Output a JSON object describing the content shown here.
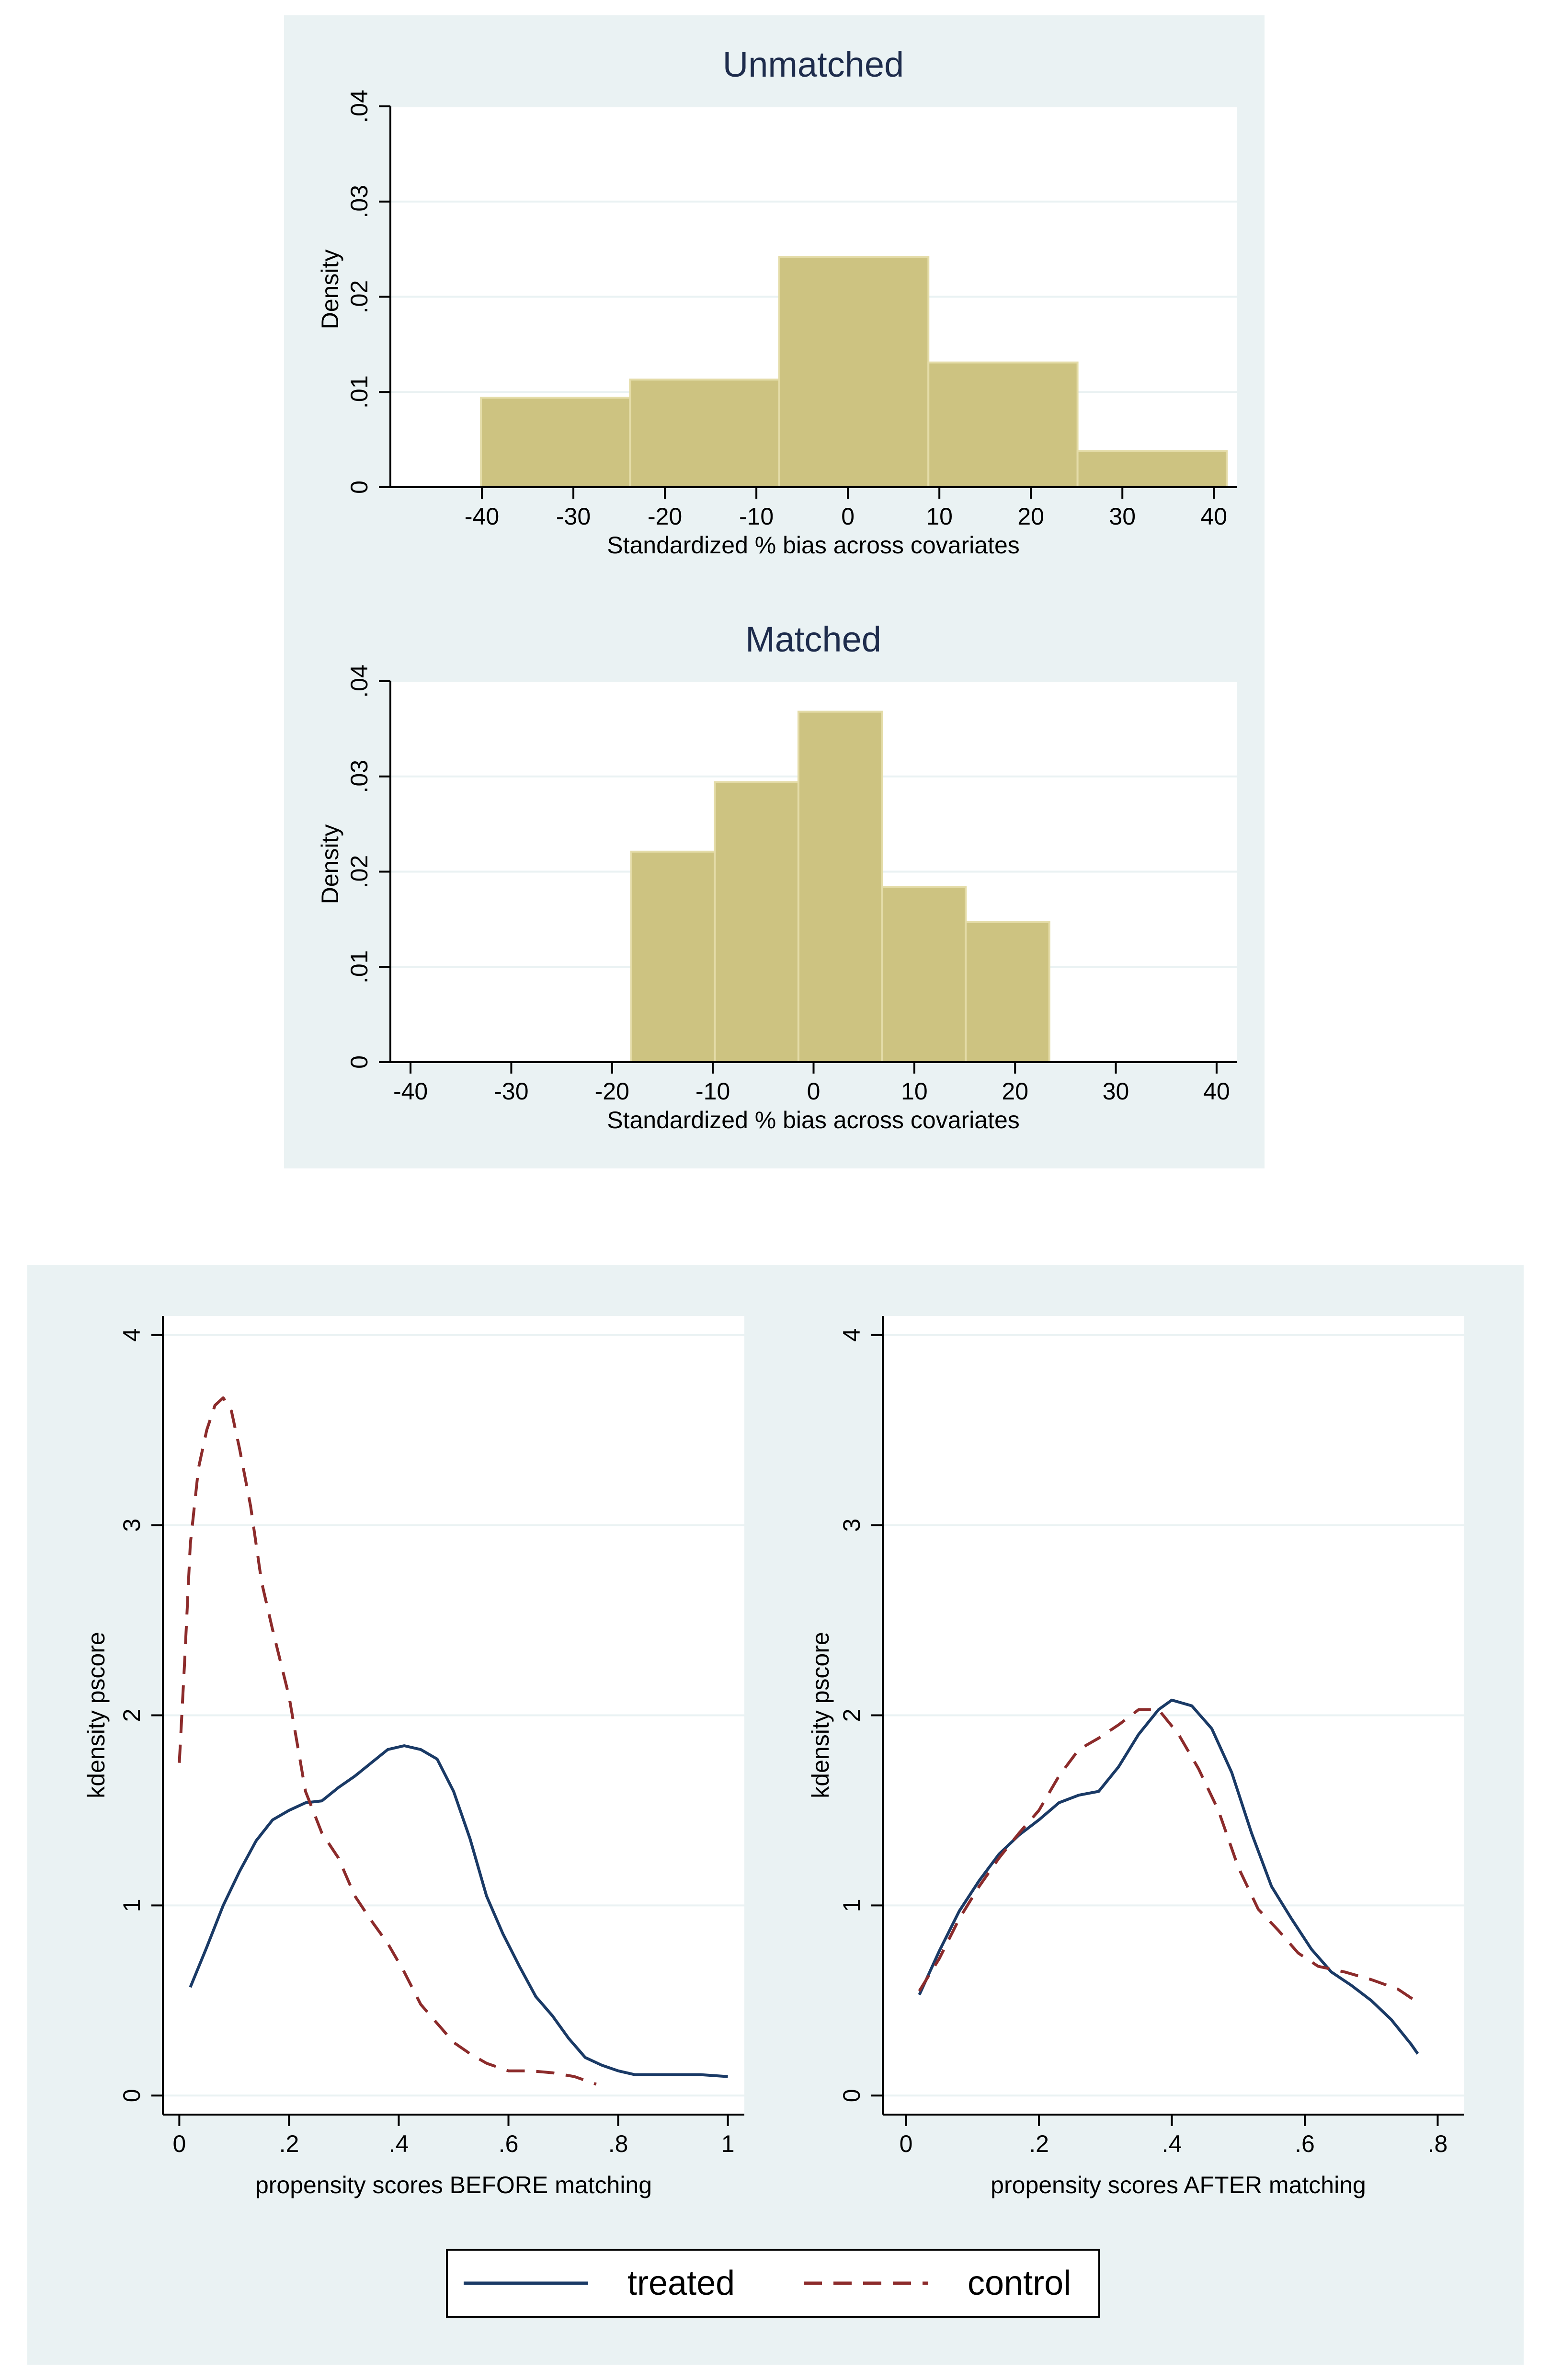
{
  "chart_data": [
    {
      "type": "bar",
      "title": "Unmatched",
      "xlabel": "Standardized % bias across covariates",
      "ylabel": "Density",
      "xlim": [
        -50,
        42.5
      ],
      "ylim": [
        0,
        0.04
      ],
      "xticks": [
        -40,
        -30,
        -20,
        -10,
        0,
        10,
        20,
        30,
        40
      ],
      "xtick_labels": [
        "-40",
        "-30",
        "-20",
        "-10",
        "0",
        "10",
        "20",
        "30",
        "40"
      ],
      "yticks": [
        0,
        0.01,
        0.02,
        0.03,
        0.04
      ],
      "ytick_labels": [
        "0",
        ".01",
        ".02",
        ".03",
        ".04"
      ],
      "bins": [
        {
          "x0": -40.1,
          "x1": -23.8,
          "value": 0.0094
        },
        {
          "x0": -23.8,
          "x1": -7.5,
          "value": 0.0113
        },
        {
          "x0": -7.5,
          "x1": 8.8,
          "value": 0.0242
        },
        {
          "x0": 8.8,
          "x1": 25.1,
          "value": 0.0131
        },
        {
          "x0": 25.1,
          "x1": 41.4,
          "value": 0.0038
        }
      ]
    },
    {
      "type": "bar",
      "title": "Matched",
      "xlabel": "Standardized % bias across covariates",
      "ylabel": "Density",
      "xlim": [
        -42,
        42
      ],
      "ylim": [
        0,
        0.04
      ],
      "xticks": [
        -40,
        -30,
        -20,
        -10,
        0,
        10,
        20,
        30,
        40
      ],
      "xtick_labels": [
        "-40",
        "-30",
        "-20",
        "-10",
        "0",
        "10",
        "20",
        "30",
        "40"
      ],
      "yticks": [
        0,
        0.01,
        0.02,
        0.03,
        0.04
      ],
      "ytick_labels": [
        "0",
        ".01",
        ".02",
        ".03",
        ".04"
      ],
      "bins": [
        {
          "x0": -18.1,
          "x1": -9.8,
          "value": 0.0221
        },
        {
          "x0": -9.8,
          "x1": -1.5,
          "value": 0.0294
        },
        {
          "x0": -1.5,
          "x1": 6.8,
          "value": 0.0368
        },
        {
          "x0": 6.8,
          "x1": 15.1,
          "value": 0.0184
        },
        {
          "x0": 15.1,
          "x1": 23.4,
          "value": 0.0147
        }
      ]
    },
    {
      "type": "line",
      "title": "",
      "xlabel": "propensity scores BEFORE matching",
      "ylabel": "kdensity pscore",
      "xlim": [
        -0.03,
        1.03
      ],
      "ylim": [
        -0.1,
        4.1
      ],
      "xticks": [
        0,
        0.2,
        0.4,
        0.6,
        0.8,
        1
      ],
      "xtick_labels": [
        "0",
        ".2",
        ".4",
        ".6",
        ".8",
        "1"
      ],
      "yticks": [
        0,
        1,
        2,
        3,
        4
      ],
      "ytick_labels": [
        "0",
        "1",
        "2",
        "3",
        "4"
      ],
      "series": [
        {
          "name": "treated",
          "points": [
            [
              0.02,
              0.57
            ],
            [
              0.05,
              0.78
            ],
            [
              0.08,
              1.0
            ],
            [
              0.11,
              1.18
            ],
            [
              0.14,
              1.34
            ],
            [
              0.17,
              1.45
            ],
            [
              0.2,
              1.5
            ],
            [
              0.23,
              1.54
            ],
            [
              0.26,
              1.55
            ],
            [
              0.29,
              1.62
            ],
            [
              0.32,
              1.68
            ],
            [
              0.35,
              1.75
            ],
            [
              0.38,
              1.82
            ],
            [
              0.41,
              1.84
            ],
            [
              0.44,
              1.82
            ],
            [
              0.47,
              1.77
            ],
            [
              0.5,
              1.6
            ],
            [
              0.53,
              1.35
            ],
            [
              0.56,
              1.05
            ],
            [
              0.59,
              0.85
            ],
            [
              0.62,
              0.68
            ],
            [
              0.65,
              0.52
            ],
            [
              0.68,
              0.42
            ],
            [
              0.71,
              0.3
            ],
            [
              0.74,
              0.2
            ],
            [
              0.77,
              0.16
            ],
            [
              0.8,
              0.13
            ],
            [
              0.83,
              0.11
            ],
            [
              0.86,
              0.11
            ],
            [
              0.9,
              0.11
            ],
            [
              0.95,
              0.11
            ],
            [
              1.0,
              0.1
            ]
          ]
        },
        {
          "name": "control",
          "points": [
            [
              0.0,
              1.75
            ],
            [
              0.01,
              2.3
            ],
            [
              0.02,
              2.9
            ],
            [
              0.035,
              3.3
            ],
            [
              0.05,
              3.5
            ],
            [
              0.065,
              3.63
            ],
            [
              0.08,
              3.67
            ],
            [
              0.095,
              3.6
            ],
            [
              0.11,
              3.4
            ],
            [
              0.13,
              3.1
            ],
            [
              0.15,
              2.7
            ],
            [
              0.17,
              2.45
            ],
            [
              0.2,
              2.1
            ],
            [
              0.23,
              1.6
            ],
            [
              0.26,
              1.38
            ],
            [
              0.29,
              1.25
            ],
            [
              0.32,
              1.05
            ],
            [
              0.35,
              0.92
            ],
            [
              0.38,
              0.8
            ],
            [
              0.41,
              0.65
            ],
            [
              0.44,
              0.48
            ],
            [
              0.47,
              0.38
            ],
            [
              0.5,
              0.28
            ],
            [
              0.53,
              0.22
            ],
            [
              0.56,
              0.17
            ],
            [
              0.6,
              0.13
            ],
            [
              0.64,
              0.13
            ],
            [
              0.68,
              0.12
            ],
            [
              0.72,
              0.1
            ],
            [
              0.76,
              0.06
            ]
          ]
        }
      ]
    },
    {
      "type": "line",
      "title": "",
      "xlabel": "propensity scores AFTER matching",
      "ylabel": "kdensity pscore",
      "xlim": [
        -0.035,
        0.84
      ],
      "ylim": [
        -0.1,
        4.1
      ],
      "xticks": [
        0,
        0.2,
        0.4,
        0.6,
        0.8
      ],
      "xtick_labels": [
        "0",
        ".2",
        ".4",
        ".6",
        ".8"
      ],
      "yticks": [
        0,
        1,
        2,
        3,
        4
      ],
      "ytick_labels": [
        "0",
        "1",
        "2",
        "3",
        "4"
      ],
      "series": [
        {
          "name": "treated",
          "points": [
            [
              0.02,
              0.53
            ],
            [
              0.05,
              0.76
            ],
            [
              0.08,
              0.97
            ],
            [
              0.11,
              1.13
            ],
            [
              0.14,
              1.27
            ],
            [
              0.17,
              1.37
            ],
            [
              0.2,
              1.45
            ],
            [
              0.23,
              1.54
            ],
            [
              0.26,
              1.58
            ],
            [
              0.29,
              1.6
            ],
            [
              0.32,
              1.73
            ],
            [
              0.35,
              1.9
            ],
            [
              0.38,
              2.03
            ],
            [
              0.4,
              2.08
            ],
            [
              0.43,
              2.05
            ],
            [
              0.46,
              1.93
            ],
            [
              0.49,
              1.7
            ],
            [
              0.52,
              1.38
            ],
            [
              0.55,
              1.1
            ],
            [
              0.58,
              0.93
            ],
            [
              0.61,
              0.77
            ],
            [
              0.64,
              0.65
            ],
            [
              0.67,
              0.58
            ],
            [
              0.7,
              0.5
            ],
            [
              0.73,
              0.4
            ],
            [
              0.76,
              0.27
            ],
            [
              0.77,
              0.22
            ]
          ]
        },
        {
          "name": "control",
          "points": [
            [
              0.02,
              0.55
            ],
            [
              0.05,
              0.72
            ],
            [
              0.08,
              0.93
            ],
            [
              0.11,
              1.1
            ],
            [
              0.14,
              1.25
            ],
            [
              0.17,
              1.38
            ],
            [
              0.2,
              1.5
            ],
            [
              0.23,
              1.68
            ],
            [
              0.26,
              1.82
            ],
            [
              0.29,
              1.88
            ],
            [
              0.32,
              1.95
            ],
            [
              0.35,
              2.03
            ],
            [
              0.38,
              2.03
            ],
            [
              0.41,
              1.9
            ],
            [
              0.44,
              1.72
            ],
            [
              0.47,
              1.5
            ],
            [
              0.5,
              1.2
            ],
            [
              0.53,
              0.98
            ],
            [
              0.56,
              0.87
            ],
            [
              0.59,
              0.75
            ],
            [
              0.62,
              0.68
            ],
            [
              0.66,
              0.65
            ],
            [
              0.7,
              0.61
            ],
            [
              0.74,
              0.56
            ],
            [
              0.77,
              0.49
            ]
          ]
        }
      ]
    }
  ],
  "legend": {
    "treated_label": "treated",
    "control_label": "control"
  },
  "colors": {
    "panel_bg": "#eaf2f3",
    "bar_fill": "#cdc381",
    "bar_stroke": "#e4dca8",
    "grid": "#eaf2f3",
    "title": "#1e2c4c",
    "axis": "#000000",
    "treated": "#1a3a66",
    "control": "#8c2b2b"
  }
}
